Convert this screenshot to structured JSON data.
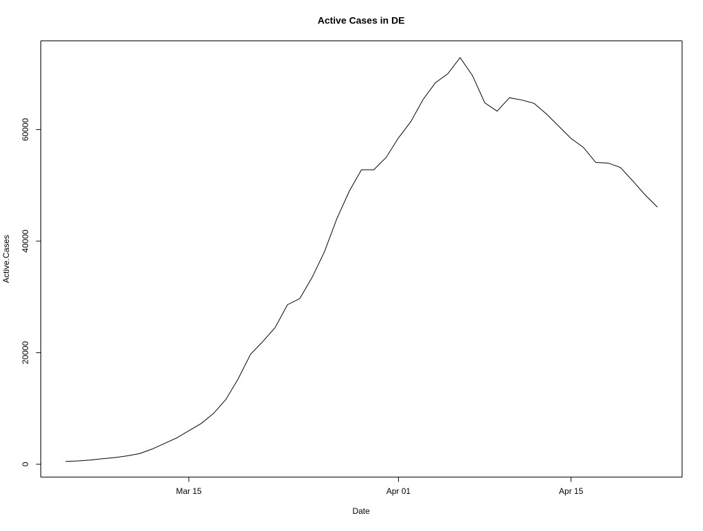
{
  "chart_data": {
    "type": "line",
    "title": "Active Cases in DE",
    "x_label": "Date",
    "y_label": "Active.Cases",
    "x": [
      "Mar 05",
      "Mar 06",
      "Mar 07",
      "Mar 08",
      "Mar 09",
      "Mar 10",
      "Mar 11",
      "Mar 12",
      "Mar 13",
      "Mar 14",
      "Mar 15",
      "Mar 16",
      "Mar 17",
      "Mar 18",
      "Mar 19",
      "Mar 20",
      "Mar 21",
      "Mar 22",
      "Mar 23",
      "Mar 24",
      "Mar 25",
      "Mar 26",
      "Mar 27",
      "Mar 28",
      "Mar 29",
      "Mar 30",
      "Mar 31",
      "Apr 01",
      "Apr 02",
      "Apr 03",
      "Apr 04",
      "Apr 05",
      "Apr 06",
      "Apr 07",
      "Apr 08",
      "Apr 09",
      "Apr 10",
      "Apr 11",
      "Apr 12",
      "Apr 13",
      "Apr 14",
      "Apr 15",
      "Apr 16",
      "Apr 17",
      "Apr 18",
      "Apr 19",
      "Apr 20",
      "Apr 21",
      "Apr 22"
    ],
    "series": [
      {
        "name": "Active.Cases",
        "color": "#000000",
        "values": [
          500,
          600,
          750,
          1000,
          1200,
          1500,
          1900,
          2700,
          3700,
          4700,
          6000,
          7300,
          9100,
          11600,
          15300,
          19700,
          22000,
          24500,
          28600,
          29700,
          33500,
          38100,
          44000,
          48900,
          52800,
          52800,
          55000,
          58500,
          61400,
          65400,
          68400,
          70000,
          72900,
          69700,
          64800,
          63300,
          65700,
          65300,
          64700,
          62800,
          60600,
          58400,
          56800,
          54100,
          54000,
          53200,
          50800,
          48300,
          46100
        ]
      }
    ],
    "xlim": [
      "Mar 03",
      "Apr 24"
    ],
    "xticks": [
      "Mar 15",
      "Apr 01",
      "Apr 15"
    ],
    "ylim": [
      -2300,
      75900
    ],
    "yticks": [
      0,
      20000,
      40000,
      60000
    ]
  }
}
